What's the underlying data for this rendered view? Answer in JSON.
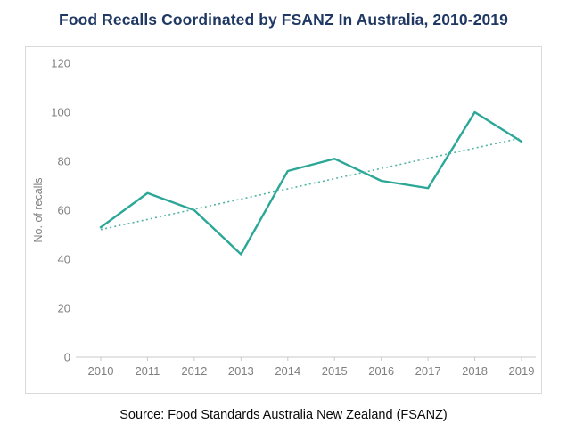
{
  "header": {
    "title": "Food Recalls Coordinated by FSANZ In Australia, 2010-2019"
  },
  "footnote": {
    "text": "Source: Food Standards Australia New Zealand (FSANZ)"
  },
  "colors": {
    "title": "#1F3864",
    "line": "#2BA797",
    "trend": "#52B3A3",
    "axis_text": "#7F7F7F",
    "axis_line": "#C9C9C9",
    "border": "#D9D9D9"
  },
  "chart_data": {
    "type": "line",
    "title": "Food Recalls Coordinated by FSANZ In Australia, 2010-2019",
    "categories": [
      "2010",
      "2011",
      "2012",
      "2013",
      "2014",
      "2015",
      "2016",
      "2017",
      "2018",
      "2019"
    ],
    "series": [
      {
        "name": "No. of recalls",
        "values": [
          53,
          67,
          60,
          42,
          76,
          81,
          72,
          69,
          100,
          88
        ]
      }
    ],
    "trendline": {
      "type": "linear",
      "style": "dotted"
    },
    "xlabel": "",
    "ylabel": "No. of recalls",
    "ylim": [
      0,
      120
    ],
    "yticks": [
      0,
      20,
      40,
      60,
      80,
      100,
      120
    ],
    "grid": false,
    "legend": "none",
    "source": "Source: Food Standards Australia New Zealand (FSANZ)"
  }
}
